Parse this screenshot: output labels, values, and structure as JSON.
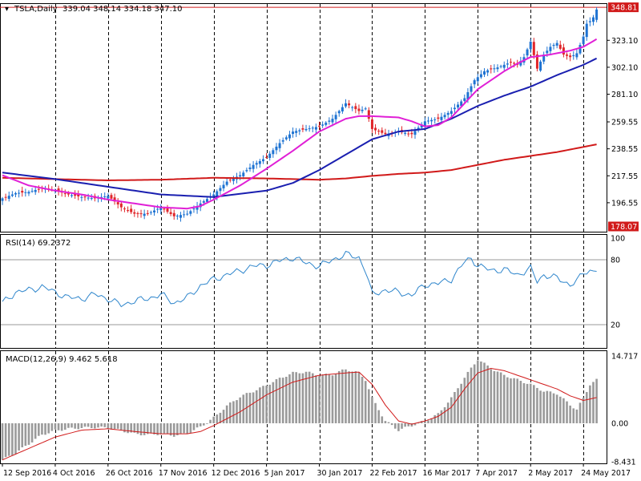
{
  "header": {
    "symbol": "TSLA,Daily",
    "ohlc": "339.04 348.14 334.18 347.10",
    "rsi_label": "RSI(14) 69.2372",
    "macd_label": "MACD(12,26,9) 9.462 5.618"
  },
  "colors": {
    "bull": "#1e73d2",
    "bear": "#e0262a",
    "ma_short": "#e01fd6",
    "ma_mid": "#1a1fb0",
    "ma_long": "#d11a1a",
    "rsi_line": "#2f86cc",
    "macd_bar": "#9a9a9a",
    "macd_signal": "#d11a1a",
    "price_tag_current": "#d11a1a",
    "price_tag_low": "#d11a1a"
  },
  "chart_data": [
    {
      "type": "candlestick",
      "title": "TSLA,Daily",
      "ylim": [
        174,
        352
      ],
      "yticks": [
        196.55,
        217.55,
        238.55,
        259.55,
        281.1,
        302.1,
        323.1
      ],
      "ytick_labels": [
        "196.55",
        "217.55",
        "238.55",
        "259.55",
        "281.10",
        "302.10",
        "323.10"
      ],
      "price_tags": [
        {
          "label": "348.81",
          "value": 348.81
        },
        {
          "label": "178.07",
          "value": 178.07
        }
      ],
      "x_labels": [
        "12 Sep 2016",
        "4 Oct 2016",
        "26 Oct 2016",
        "17 Nov 2016",
        "12 Dec 2016",
        "5 Jan 2017",
        "30 Jan 2017",
        "22 Feb 2017",
        "16 Mar 2017",
        "7 Apr 2017",
        "2 May 2017",
        "24 May 2017"
      ],
      "x_label_bars": [
        0,
        16,
        32,
        48,
        64,
        80,
        96,
        112,
        128,
        144,
        160,
        176
      ],
      "close_waypoints": [
        [
          0,
          200
        ],
        [
          4,
          204
        ],
        [
          8,
          205
        ],
        [
          12,
          208
        ],
        [
          16,
          206
        ],
        [
          20,
          203
        ],
        [
          24,
          201
        ],
        [
          28,
          200
        ],
        [
          32,
          202
        ],
        [
          36,
          193
        ],
        [
          40,
          188
        ],
        [
          44,
          188
        ],
        [
          48,
          193
        ],
        [
          52,
          186
        ],
        [
          56,
          188
        ],
        [
          60,
          196
        ],
        [
          64,
          203
        ],
        [
          68,
          213
        ],
        [
          72,
          218
        ],
        [
          76,
          226
        ],
        [
          80,
          232
        ],
        [
          84,
          243
        ],
        [
          88,
          252
        ],
        [
          92,
          254
        ],
        [
          96,
          256
        ],
        [
          100,
          262
        ],
        [
          104,
          274
        ],
        [
          108,
          268
        ],
        [
          110,
          270
        ],
        [
          112,
          254
        ],
        [
          116,
          250
        ],
        [
          120,
          252
        ],
        [
          124,
          250
        ],
        [
          128,
          260
        ],
        [
          132,
          262
        ],
        [
          136,
          268
        ],
        [
          140,
          278
        ],
        [
          143,
          292
        ],
        [
          146,
          299
        ],
        [
          150,
          302
        ],
        [
          154,
          306
        ],
        [
          156,
          304
        ],
        [
          158,
          310
        ],
        [
          160,
          322
        ],
        [
          162,
          301
        ],
        [
          164,
          312
        ],
        [
          166,
          318
        ],
        [
          168,
          321
        ],
        [
          170,
          312
        ],
        [
          172,
          310
        ],
        [
          174,
          313
        ],
        [
          176,
          326
        ],
        [
          177,
          336
        ],
        [
          178,
          338
        ],
        [
          179,
          341
        ],
        [
          180,
          347.1
        ]
      ],
      "ma20": [
        [
          0,
          218
        ],
        [
          8,
          210
        ],
        [
          16,
          206
        ],
        [
          24,
          203
        ],
        [
          32,
          199
        ],
        [
          40,
          196
        ],
        [
          48,
          193
        ],
        [
          56,
          192
        ],
        [
          60,
          194
        ],
        [
          64,
          199
        ],
        [
          72,
          210
        ],
        [
          80,
          223
        ],
        [
          88,
          237
        ],
        [
          96,
          252
        ],
        [
          104,
          262
        ],
        [
          108,
          264
        ],
        [
          112,
          264
        ],
        [
          120,
          263
        ],
        [
          124,
          260
        ],
        [
          128,
          256
        ],
        [
          132,
          257
        ],
        [
          136,
          263
        ],
        [
          140,
          274
        ],
        [
          144,
          285
        ],
        [
          148,
          292
        ],
        [
          152,
          299
        ],
        [
          156,
          305
        ],
        [
          160,
          310
        ],
        [
          166,
          312
        ],
        [
          172,
          315
        ],
        [
          176,
          318
        ],
        [
          180,
          324
        ]
      ],
      "ma50": [
        [
          0,
          220
        ],
        [
          16,
          215
        ],
        [
          32,
          209
        ],
        [
          48,
          203
        ],
        [
          64,
          201
        ],
        [
          80,
          206
        ],
        [
          88,
          212
        ],
        [
          96,
          222
        ],
        [
          104,
          234
        ],
        [
          112,
          246
        ],
        [
          120,
          252
        ],
        [
          128,
          254
        ],
        [
          136,
          262
        ],
        [
          144,
          272
        ],
        [
          152,
          280
        ],
        [
          160,
          287
        ],
        [
          168,
          296
        ],
        [
          176,
          304
        ],
        [
          180,
          309
        ]
      ],
      "ma200": [
        [
          0,
          216
        ],
        [
          16,
          215
        ],
        [
          32,
          214
        ],
        [
          48,
          214.5
        ],
        [
          64,
          216
        ],
        [
          80,
          215.5
        ],
        [
          96,
          214.5
        ],
        [
          104,
          215.5
        ],
        [
          112,
          217.5
        ],
        [
          120,
          219
        ],
        [
          128,
          220
        ],
        [
          136,
          222
        ],
        [
          144,
          226
        ],
        [
          152,
          230
        ],
        [
          160,
          233
        ],
        [
          168,
          236
        ],
        [
          176,
          240
        ],
        [
          180,
          242
        ]
      ]
    },
    {
      "type": "line",
      "title": "RSI(14)",
      "ylim": [
        0,
        100
      ],
      "levels": [
        20,
        80
      ],
      "ytick_labels": [
        "100",
        "80",
        "20"
      ],
      "values": [
        [
          0,
          40
        ],
        [
          4,
          50
        ],
        [
          8,
          52
        ],
        [
          12,
          55
        ],
        [
          16,
          50
        ],
        [
          20,
          45
        ],
        [
          24,
          44
        ],
        [
          28,
          48
        ],
        [
          32,
          44
        ],
        [
          36,
          38
        ],
        [
          40,
          42
        ],
        [
          44,
          44
        ],
        [
          48,
          48
        ],
        [
          52,
          40
        ],
        [
          56,
          45
        ],
        [
          60,
          56
        ],
        [
          64,
          62
        ],
        [
          68,
          66
        ],
        [
          72,
          70
        ],
        [
          76,
          74
        ],
        [
          80,
          75
        ],
        [
          84,
          79
        ],
        [
          88,
          82
        ],
        [
          92,
          77
        ],
        [
          96,
          74
        ],
        [
          100,
          80
        ],
        [
          104,
          85
        ],
        [
          108,
          82
        ],
        [
          110,
          70
        ],
        [
          112,
          48
        ],
        [
          116,
          52
        ],
        [
          120,
          50
        ],
        [
          124,
          47
        ],
        [
          128,
          57
        ],
        [
          132,
          58
        ],
        [
          136,
          62
        ],
        [
          140,
          78
        ],
        [
          142,
          81
        ],
        [
          144,
          75
        ],
        [
          148,
          70
        ],
        [
          152,
          71
        ],
        [
          156,
          66
        ],
        [
          160,
          72
        ],
        [
          162,
          60
        ],
        [
          164,
          66
        ],
        [
          168,
          63
        ],
        [
          172,
          57
        ],
        [
          174,
          60
        ],
        [
          176,
          68
        ],
        [
          178,
          70
        ],
        [
          180,
          69.2372
        ]
      ]
    },
    {
      "type": "bar",
      "title": "MACD(12,26,9)",
      "ylim": [
        -9.4,
        16.6
      ],
      "ytick_labels": [
        "14.717",
        "0.00",
        "-8.431"
      ],
      "yticks": [
        14.717,
        0,
        -8.431
      ],
      "values": [
        [
          0,
          -8.0
        ],
        [
          4,
          -6.5
        ],
        [
          8,
          -4.5
        ],
        [
          12,
          -2.5
        ],
        [
          16,
          -1.6
        ],
        [
          20,
          -1.2
        ],
        [
          24,
          -1.0
        ],
        [
          28,
          -0.9
        ],
        [
          32,
          -1.0
        ],
        [
          36,
          -1.6
        ],
        [
          40,
          -2.3
        ],
        [
          44,
          -2.5
        ],
        [
          48,
          -2.3
        ],
        [
          52,
          -2.7
        ],
        [
          56,
          -2.2
        ],
        [
          60,
          -0.8
        ],
        [
          64,
          1.2
        ],
        [
          68,
          3.8
        ],
        [
          72,
          5.8
        ],
        [
          76,
          7.0
        ],
        [
          80,
          8.3
        ],
        [
          84,
          9.8
        ],
        [
          88,
          11.0
        ],
        [
          92,
          11.2
        ],
        [
          96,
          10.5
        ],
        [
          100,
          10.7
        ],
        [
          104,
          11.8
        ],
        [
          108,
          11.0
        ],
        [
          110,
          9.5
        ],
        [
          112,
          5.5
        ],
        [
          116,
          0.5
        ],
        [
          120,
          -1.5
        ],
        [
          124,
          -0.5
        ],
        [
          128,
          0.5
        ],
        [
          132,
          2.0
        ],
        [
          136,
          5.5
        ],
        [
          140,
          10.0
        ],
        [
          144,
          14.0
        ],
        [
          148,
          12.0
        ],
        [
          152,
          10.5
        ],
        [
          156,
          9.5
        ],
        [
          160,
          8.5
        ],
        [
          164,
          7.0
        ],
        [
          168,
          6.5
        ],
        [
          172,
          4.0
        ],
        [
          174,
          3.0
        ],
        [
          176,
          5.5
        ],
        [
          178,
          8.5
        ],
        [
          180,
          9.462
        ]
      ],
      "signal": [
        [
          0,
          -8.0
        ],
        [
          8,
          -5.5
        ],
        [
          16,
          -3.0
        ],
        [
          24,
          -1.5
        ],
        [
          32,
          -1.2
        ],
        [
          40,
          -1.8
        ],
        [
          48,
          -2.3
        ],
        [
          56,
          -2.3
        ],
        [
          60,
          -1.8
        ],
        [
          64,
          -0.5
        ],
        [
          72,
          2.5
        ],
        [
          80,
          6.2
        ],
        [
          88,
          9.0
        ],
        [
          96,
          10.5
        ],
        [
          104,
          11.0
        ],
        [
          108,
          11.2
        ],
        [
          112,
          8.5
        ],
        [
          116,
          4.0
        ],
        [
          120,
          0.5
        ],
        [
          124,
          -0.2
        ],
        [
          128,
          0.5
        ],
        [
          132,
          1.5
        ],
        [
          136,
          3.5
        ],
        [
          140,
          7.5
        ],
        [
          144,
          11.0
        ],
        [
          148,
          12.0
        ],
        [
          152,
          11.5
        ],
        [
          156,
          10.5
        ],
        [
          160,
          9.5
        ],
        [
          164,
          8.5
        ],
        [
          168,
          7.5
        ],
        [
          172,
          6.0
        ],
        [
          176,
          5.0
        ],
        [
          180,
          5.618
        ]
      ]
    }
  ]
}
